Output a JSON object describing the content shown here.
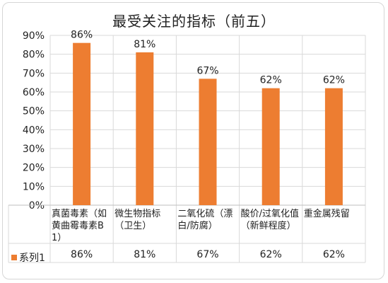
{
  "chart_data": {
    "type": "bar",
    "title": "最受关注的指标（前五）",
    "categories": [
      "真菌毒素（如黄曲霉毒素B1）",
      "微生物指标（卫生）",
      "二氧化硫（漂白/防腐）",
      "酸价/过氧化值（新鲜程度）",
      "重金属残留"
    ],
    "series": [
      {
        "name": "系列1",
        "values": [
          0.86,
          0.81,
          0.67,
          0.62,
          0.62
        ],
        "color": "#ed7d31"
      }
    ],
    "data_labels": [
      "86%",
      "81%",
      "67%",
      "62%",
      "62%"
    ],
    "yticks": [
      "0%",
      "10%",
      "20%",
      "30%",
      "40%",
      "50%",
      "60%",
      "70%",
      "80%",
      "90%"
    ],
    "ylim": [
      0,
      0.9
    ],
    "grid": true,
    "legend": "data-table"
  }
}
